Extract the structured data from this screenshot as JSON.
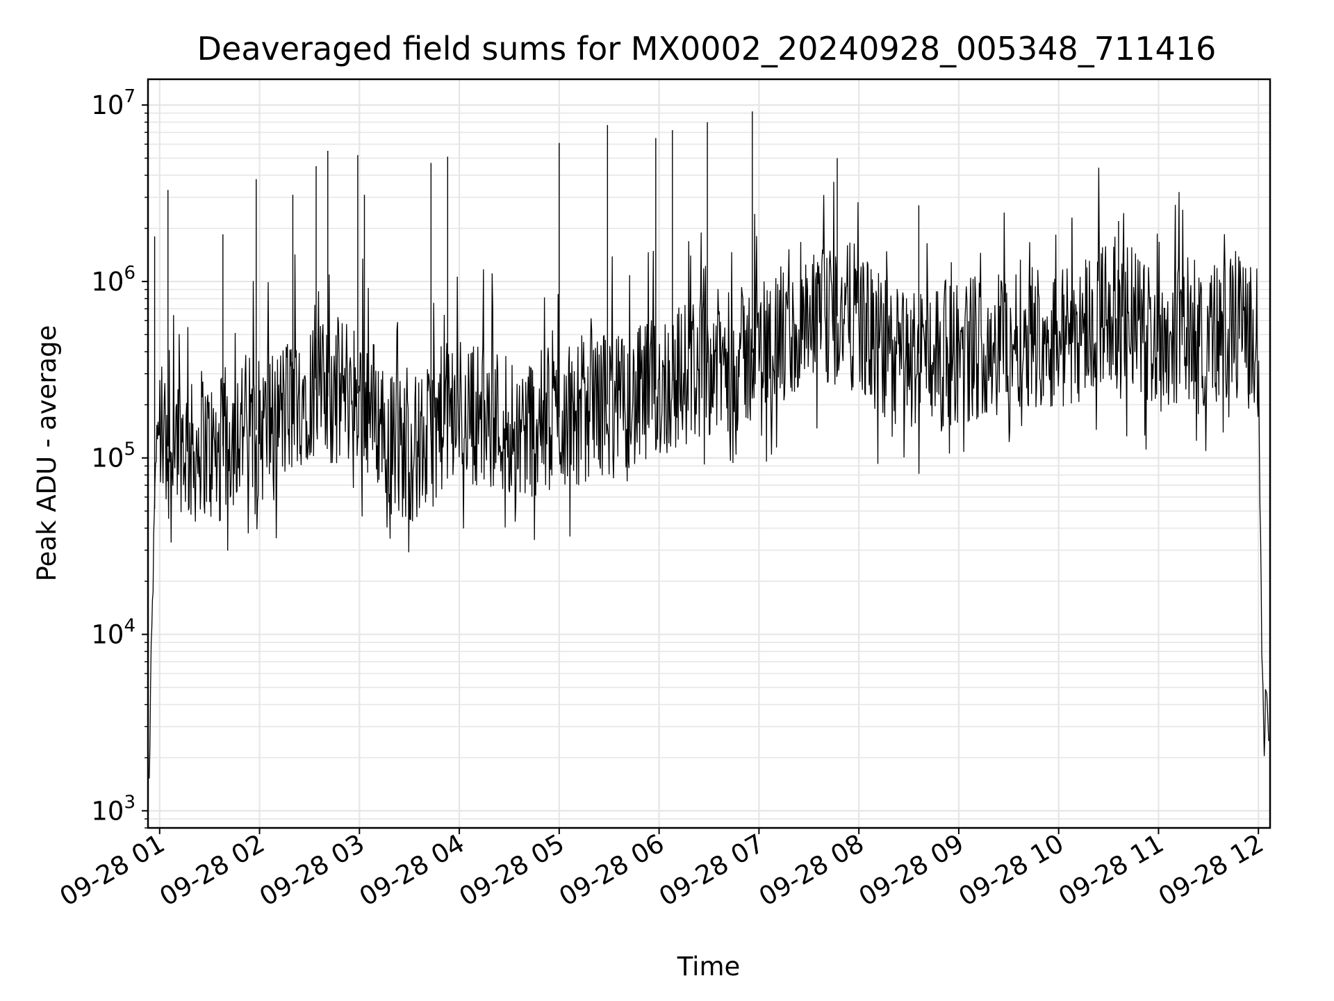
{
  "chart_data": {
    "type": "line",
    "title": "Deaveraged field sums for MX0002_20240928_005348_711416",
    "xlabel": "Time",
    "ylabel": "Peak ADU - average",
    "yscale": "log",
    "ylim": [
      800,
      14000000
    ],
    "xlim": [
      "2024-09-28 00:53:00",
      "2024-09-28 12:07:00"
    ],
    "grid": true,
    "line_color": "#000000",
    "x_ticks": [
      {
        "value": "2024-09-28 01:00",
        "label": "09-28 01"
      },
      {
        "value": "2024-09-28 02:00",
        "label": "09-28 02"
      },
      {
        "value": "2024-09-28 03:00",
        "label": "09-28 03"
      },
      {
        "value": "2024-09-28 04:00",
        "label": "09-28 04"
      },
      {
        "value": "2024-09-28 05:00",
        "label": "09-28 05"
      },
      {
        "value": "2024-09-28 06:00",
        "label": "09-28 06"
      },
      {
        "value": "2024-09-28 07:00",
        "label": "09-28 07"
      },
      {
        "value": "2024-09-28 08:00",
        "label": "09-28 08"
      },
      {
        "value": "2024-09-28 09:00",
        "label": "09-28 09"
      },
      {
        "value": "2024-09-28 10:00",
        "label": "09-28 10"
      },
      {
        "value": "2024-09-28 11:00",
        "label": "09-28 11"
      },
      {
        "value": "2024-09-28 12:00",
        "label": "09-28 12"
      }
    ],
    "y_ticks": [
      {
        "value": 1000,
        "base": "10",
        "exp": "3"
      },
      {
        "value": 10000,
        "base": "10",
        "exp": "4"
      },
      {
        "value": 100000,
        "base": "10",
        "exp": "5"
      },
      {
        "value": 1000000,
        "base": "10",
        "exp": "6"
      },
      {
        "value": 10000000,
        "base": "10",
        "exp": "7"
      }
    ],
    "series": [
      {
        "x": [
          "2024-09-28 00:53:48",
          "2024-09-28 00:54:30",
          "2024-09-28 00:55:30",
          "2024-09-28 00:56:30",
          "2024-09-28 00:57:30",
          "2024-09-28 00:58:30",
          "2024-09-28 01:00:00",
          "2024-09-28 01:03:00",
          "2024-09-28 01:06:00",
          "2024-09-28 01:10:00",
          "2024-09-28 01:15:00",
          "2024-09-28 01:20:00",
          "2024-09-28 01:25:00",
          "2024-09-28 01:30:00",
          "2024-09-28 01:35:00",
          "2024-09-28 01:40:00",
          "2024-09-28 01:45:00",
          "2024-09-28 01:50:00",
          "2024-09-28 01:55:00",
          "2024-09-28 02:00:00",
          "2024-09-28 02:10:00",
          "2024-09-28 02:20:00",
          "2024-09-28 02:30:00",
          "2024-09-28 02:40:00",
          "2024-09-28 02:50:00",
          "2024-09-28 03:00:00",
          "2024-09-28 03:10:00",
          "2024-09-28 03:20:00",
          "2024-09-28 03:30:00",
          "2024-09-28 03:40:00",
          "2024-09-28 03:50:00",
          "2024-09-28 04:00:00",
          "2024-09-28 04:10:00",
          "2024-09-28 04:20:00",
          "2024-09-28 04:30:00",
          "2024-09-28 04:40:00",
          "2024-09-28 04:50:00",
          "2024-09-28 05:00:00",
          "2024-09-28 05:10:00",
          "2024-09-28 05:20:00",
          "2024-09-28 05:30:00",
          "2024-09-28 05:40:00",
          "2024-09-28 05:50:00",
          "2024-09-28 06:00:00",
          "2024-09-28 06:10:00",
          "2024-09-28 06:20:00",
          "2024-09-28 06:30:00",
          "2024-09-28 06:40:00",
          "2024-09-28 06:50:00",
          "2024-09-28 07:00:00",
          "2024-09-28 07:10:00",
          "2024-09-28 07:20:00",
          "2024-09-28 07:30:00",
          "2024-09-28 07:40:00",
          "2024-09-28 07:50:00",
          "2024-09-28 08:00:00",
          "2024-09-28 08:10:00",
          "2024-09-28 08:20:00",
          "2024-09-28 08:30:00",
          "2024-09-28 08:40:00",
          "2024-09-28 08:50:00",
          "2024-09-28 09:00:00",
          "2024-09-28 09:10:00",
          "2024-09-28 09:20:00",
          "2024-09-28 09:30:00",
          "2024-09-28 09:40:00",
          "2024-09-28 09:50:00",
          "2024-09-28 10:00:00",
          "2024-09-28 10:10:00",
          "2024-09-28 10:20:00",
          "2024-09-28 10:30:00",
          "2024-09-28 10:40:00",
          "2024-09-28 10:50:00",
          "2024-09-28 11:00:00",
          "2024-09-28 11:10:00",
          "2024-09-28 11:20:00",
          "2024-09-28 11:30:00",
          "2024-09-28 11:40:00",
          "2024-09-28 11:50:00",
          "2024-09-28 12:00:00",
          "2024-09-28 12:01:30",
          "2024-09-28 12:02:30",
          "2024-09-28 12:03:30",
          "2024-09-28 12:04:30",
          "2024-09-28 12:05:30",
          "2024-09-28 12:06:30"
        ],
        "y": [
          1400,
          4500,
          12000,
          33000,
          80000,
          150000,
          160000,
          130000,
          110000,
          140000,
          120000,
          100000,
          130000,
          110000,
          100000,
          130000,
          140000,
          160000,
          150000,
          140000,
          170000,
          200000,
          260000,
          220000,
          250000,
          230000,
          180000,
          120000,
          110000,
          120000,
          170000,
          190000,
          180000,
          170000,
          160000,
          150000,
          160000,
          170000,
          180000,
          210000,
          200000,
          190000,
          220000,
          250000,
          280000,
          320000,
          350000,
          340000,
          360000,
          420000,
          480000,
          460000,
          520000,
          600000,
          650000,
          620000,
          440000,
          380000,
          350000,
          420000,
          390000,
          400000,
          430000,
          460000,
          480000,
          520000,
          500000,
          470000,
          520000,
          620000,
          700000,
          660000,
          560000,
          460000,
          510000,
          540000,
          500000,
          520000,
          530000,
          460000,
          18000,
          4500,
          2500,
          5000,
          3500,
          2400
        ]
      }
    ],
    "peaks": [
      {
        "x": "2024-09-28 00:57:00",
        "y": 1800000
      },
      {
        "x": "2024-09-28 01:05:00",
        "y": 3300000
      },
      {
        "x": "2024-09-28 01:38:00",
        "y": 1850000
      },
      {
        "x": "2024-09-28 01:58:00",
        "y": 3800000
      },
      {
        "x": "2024-09-28 02:20:00",
        "y": 3100000
      },
      {
        "x": "2024-09-28 02:34:00",
        "y": 4500000
      },
      {
        "x": "2024-09-28 02:41:00",
        "y": 5500000
      },
      {
        "x": "2024-09-28 02:59:00",
        "y": 5200000
      },
      {
        "x": "2024-09-28 03:03:00",
        "y": 3100000
      },
      {
        "x": "2024-09-28 03:43:00",
        "y": 4700000
      },
      {
        "x": "2024-09-28 03:53:00",
        "y": 5100000
      },
      {
        "x": "2024-09-28 05:00:00",
        "y": 6100000
      },
      {
        "x": "2024-09-28 05:29:00",
        "y": 7700000
      },
      {
        "x": "2024-09-28 05:58:00",
        "y": 6500000
      },
      {
        "x": "2024-09-28 06:08:00",
        "y": 7200000
      },
      {
        "x": "2024-09-28 06:29:00",
        "y": 8000000
      },
      {
        "x": "2024-09-28 06:56:00",
        "y": 9200000
      },
      {
        "x": "2024-09-28 07:47:00",
        "y": 5000000
      },
      {
        "x": "2024-09-28 08:36:00",
        "y": 2700000
      },
      {
        "x": "2024-09-28 10:08:00",
        "y": 2300000
      },
      {
        "x": "2024-09-28 10:36:00",
        "y": 2200000
      }
    ]
  }
}
